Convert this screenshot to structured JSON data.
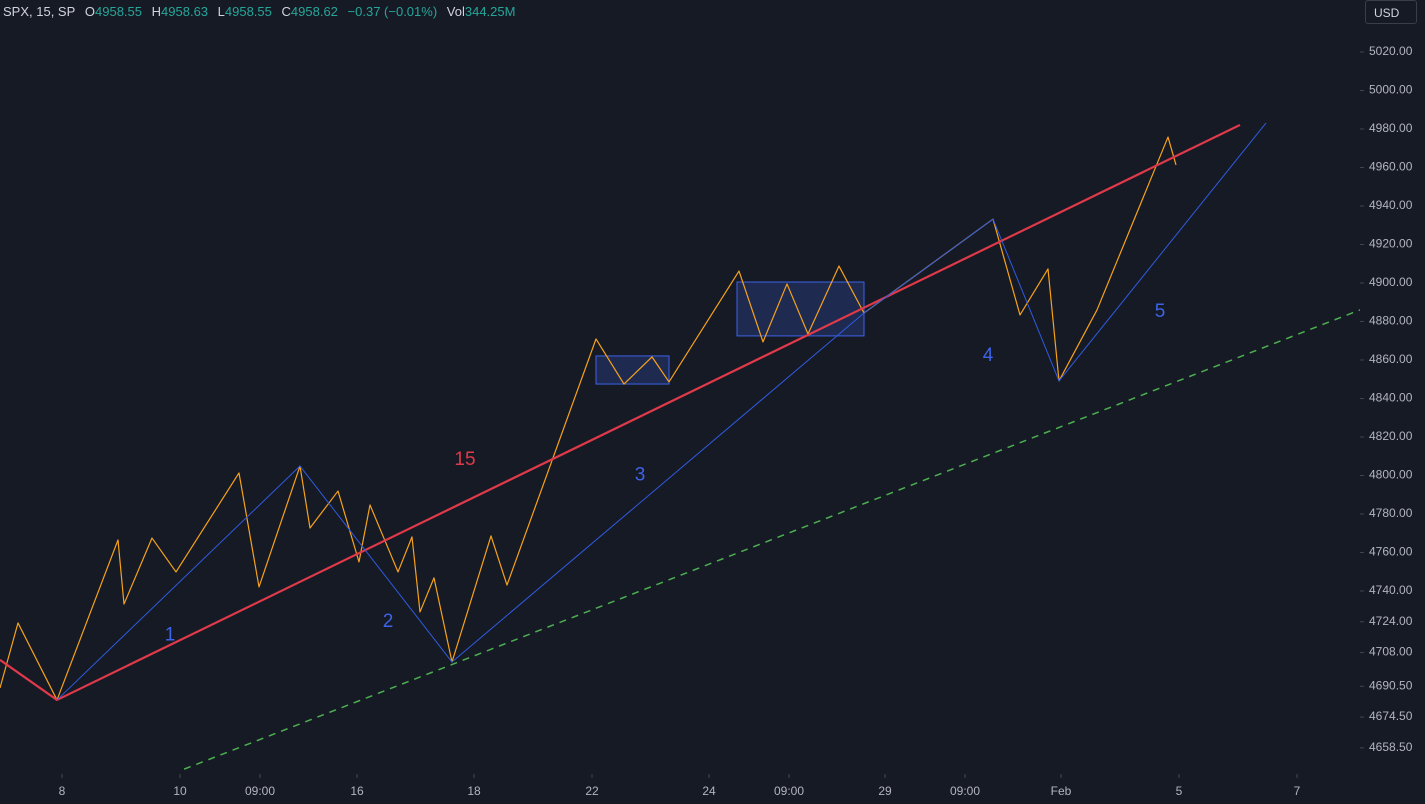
{
  "header": {
    "symbol": "SPX, 15, SP",
    "o_label": "O",
    "open": "4958.55",
    "h_label": "H",
    "high": "4958.63",
    "l_label": "L",
    "low": "4958.55",
    "c_label": "C",
    "close": "4958.62",
    "change": "−0.37 (−0.01%)",
    "vol_label": "Vol",
    "volume": "344.25M"
  },
  "currency_button": "USD",
  "chart_data": {
    "type": "line",
    "xlim": [
      0,
      680
    ],
    "ylim": [
      4647,
      5047
    ],
    "xticks": [
      {
        "value": 31,
        "label": "8"
      },
      {
        "value": 90,
        "label": "10"
      },
      {
        "value": 130,
        "label": "09:00"
      },
      {
        "value": 178.5,
        "label": "16"
      },
      {
        "value": 237,
        "label": "18"
      },
      {
        "value": 296,
        "label": "22"
      },
      {
        "value": 354.5,
        "label": "24"
      },
      {
        "value": 394.5,
        "label": "09:00"
      },
      {
        "value": 442.5,
        "label": "29"
      },
      {
        "value": 482.5,
        "label": "09:00"
      },
      {
        "value": 530.5,
        "label": "Feb"
      },
      {
        "value": 589.5,
        "label": "5"
      },
      {
        "value": 648.5,
        "label": "7"
      }
    ],
    "yticks": [
      {
        "value": 5020,
        "label": "5020.00"
      },
      {
        "value": 5000,
        "label": "5000.00"
      },
      {
        "value": 4980,
        "label": "4980.00"
      },
      {
        "value": 4960,
        "label": "4960.00"
      },
      {
        "value": 4940,
        "label": "4940.00"
      },
      {
        "value": 4920,
        "label": "4920.00"
      },
      {
        "value": 4900,
        "label": "4900.00"
      },
      {
        "value": 4880,
        "label": "4880.00"
      },
      {
        "value": 4860,
        "label": "4860.00"
      },
      {
        "value": 4840,
        "label": "4840.00"
      },
      {
        "value": 4820,
        "label": "4820.00"
      },
      {
        "value": 4800,
        "label": "4800.00"
      },
      {
        "value": 4780,
        "label": "4780.00"
      },
      {
        "value": 4760,
        "label": "4760.00"
      },
      {
        "value": 4740,
        "label": "4740.00"
      },
      {
        "value": 4724,
        "label": "4724.00"
      },
      {
        "value": 4708,
        "label": "4708.00"
      },
      {
        "value": 4690.5,
        "label": "4690.50"
      },
      {
        "value": 4674.5,
        "label": "4674.50"
      },
      {
        "value": 4658.5,
        "label": "4658.50"
      }
    ],
    "series": [
      {
        "color": "#f7a21b",
        "width": 1.2,
        "dashed": false,
        "x": [
          0,
          9,
          28.5,
          59,
          62,
          76,
          88,
          119.5,
          129.5,
          150,
          155,
          169,
          179.5,
          185,
          199,
          206,
          210,
          217,
          226,
          245.5,
          253.5,
          298,
          312,
          326,
          334.5,
          369.5,
          381.5,
          393.5,
          404,
          419.5,
          432,
          496.5,
          510,
          524,
          529.5,
          548.5,
          584,
          588
        ],
        "values": [
          4689.6,
          4723.4,
          4683.4,
          4766.5,
          4733.2,
          4767.5,
          4749.9,
          4801.3,
          4742.1,
          4804.9,
          4772.7,
          4791.9,
          4755.1,
          4784.7,
          4749.9,
          4768.1,
          4729.1,
          4746.8,
          4703.1,
          4768.6,
          4743.1,
          4870.9,
          4847.5,
          4861.6,
          4848.6,
          4906.2,
          4869.4,
          4899.5,
          4873.5,
          4908.8,
          4884.4,
          4933.2,
          4883.4,
          4907.3,
          4849.1,
          4886,
          4975.8,
          4961.3
        ]
      },
      {
        "color": "#e03a4a",
        "width": 2.2,
        "dashed": false,
        "x": [
          0,
          28.5,
          620
        ],
        "values": [
          4704.2,
          4683.4,
          4982.1
        ]
      },
      {
        "color": "#2f5be0",
        "width": 1,
        "dashed": false,
        "x": [
          28.5,
          150,
          226,
          432,
          496.5,
          529.5,
          633
        ],
        "values": [
          4683.4,
          4804.9,
          4703.1,
          4884.4,
          4933.2,
          4849.1,
          4983.1
        ]
      },
      {
        "color": "#4caf50",
        "width": 1.5,
        "dashed": true,
        "x": [
          86,
          680
        ],
        "values": [
          4645,
          4886
        ]
      }
    ],
    "boxes": [
      {
        "color": "#3d63e8",
        "x": [
          298,
          334.5
        ],
        "y": [
          4862.1,
          4847.5
        ]
      },
      {
        "color": "#3d63e8",
        "x": [
          368.5,
          432
        ],
        "y": [
          4900.5,
          4872.5
        ]
      }
    ],
    "annotations": [
      {
        "text": "1",
        "x": 85,
        "y": 4717,
        "color": "#3d63e8"
      },
      {
        "text": "2",
        "x": 194,
        "y": 4724,
        "color": "#3d63e8"
      },
      {
        "text": "3",
        "x": 320,
        "y": 4800,
        "color": "#3d63e8"
      },
      {
        "text": "4",
        "x": 494,
        "y": 4862,
        "color": "#3d63e8"
      },
      {
        "text": "5",
        "x": 580,
        "y": 4885,
        "color": "#3d63e8"
      },
      {
        "text": "15",
        "x": 232.5,
        "y": 4808,
        "color": "#e03a4a"
      }
    ]
  }
}
